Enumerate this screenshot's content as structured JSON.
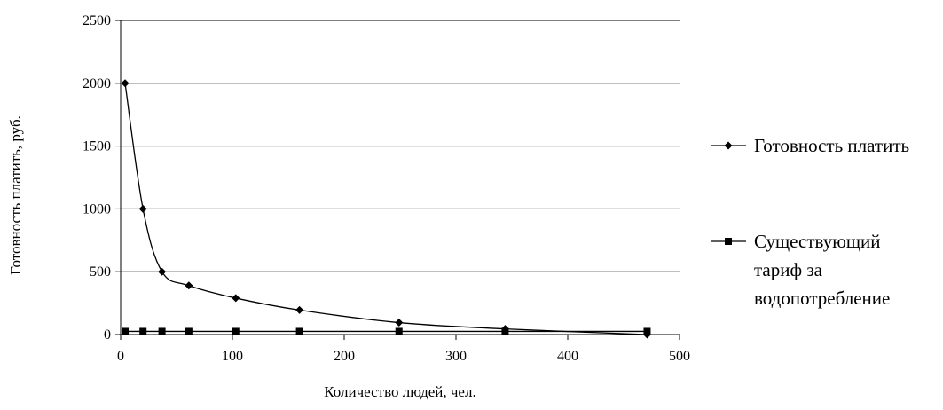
{
  "chart_data": {
    "type": "line",
    "title": "",
    "xlabel": "Количество людей, чел.",
    "ylabel": "Готовность платить, руб.",
    "xlim": [
      0,
      500
    ],
    "ylim": [
      0,
      2500
    ],
    "x_ticks": [
      0,
      100,
      200,
      300,
      400,
      500
    ],
    "y_ticks": [
      0,
      500,
      1000,
      1500,
      2000,
      2500
    ],
    "grid": "horizontal",
    "legend_position": "right",
    "series": [
      {
        "name": "Готовность платить",
        "marker": "diamond",
        "color": "#000000",
        "smooth": true,
        "points": [
          {
            "x": 4,
            "y": 2000
          },
          {
            "x": 20,
            "y": 1000
          },
          {
            "x": 37,
            "y": 500
          },
          {
            "x": 61,
            "y": 390
          },
          {
            "x": 103,
            "y": 290
          },
          {
            "x": 160,
            "y": 195
          },
          {
            "x": 249,
            "y": 95
          },
          {
            "x": 344,
            "y": 45
          },
          {
            "x": 471,
            "y": 0
          }
        ]
      },
      {
        "name": "Существующий тариф за водопотребление",
        "name_lines": [
          "Существующий",
          "тариф за",
          "водопотребление"
        ],
        "marker": "square",
        "color": "#000000",
        "smooth": false,
        "points": [
          {
            "x": 4,
            "y": 25
          },
          {
            "x": 20,
            "y": 25
          },
          {
            "x": 37,
            "y": 25
          },
          {
            "x": 61,
            "y": 25
          },
          {
            "x": 103,
            "y": 25
          },
          {
            "x": 160,
            "y": 25
          },
          {
            "x": 249,
            "y": 25
          },
          {
            "x": 344,
            "y": 25
          },
          {
            "x": 471,
            "y": 25
          }
        ]
      }
    ]
  }
}
